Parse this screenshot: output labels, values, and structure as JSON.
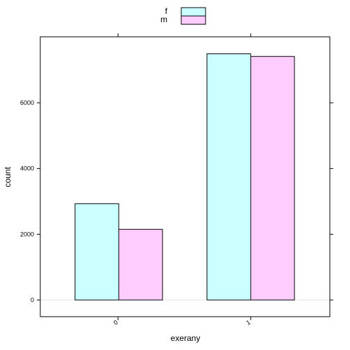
{
  "chart_data": {
    "type": "bar",
    "xlabel": "exerany",
    "ylabel": "count",
    "categories": [
      "0",
      "1"
    ],
    "series": [
      {
        "name": "f",
        "values": [
          2930,
          7490
        ],
        "color": "#ccffff"
      },
      {
        "name": "m",
        "values": [
          2150,
          7410
        ],
        "color": "#ffccff"
      }
    ],
    "yticks": [
      0,
      2000,
      4000,
      6000
    ],
    "ytick_labels": [
      "0",
      "2000",
      "4000",
      "6000"
    ],
    "ylim": [
      -550,
      8020
    ],
    "legend_position": "top",
    "grid": false,
    "baseline_reference_line": true
  }
}
